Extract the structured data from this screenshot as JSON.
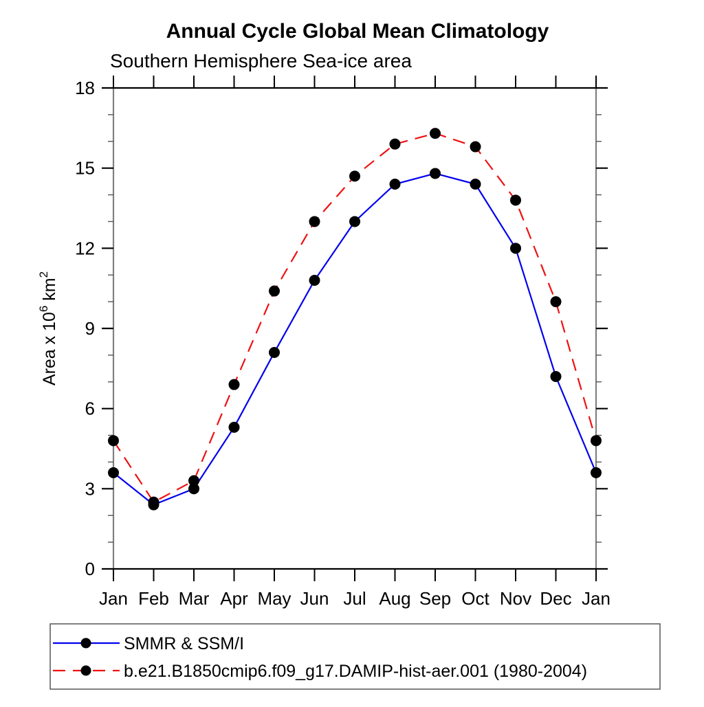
{
  "title": "Annual Cycle Global Mean Climatology",
  "subtitle": "Southern Hemisphere Sea-ice area",
  "chart_data": {
    "type": "line",
    "categories": [
      "Jan",
      "Feb",
      "Mar",
      "Apr",
      "May",
      "Jun",
      "Jul",
      "Aug",
      "Sep",
      "Oct",
      "Nov",
      "Dec",
      "Jan"
    ],
    "ylabel": "Area x 10^6 km^2",
    "ylabel_parts": {
      "base": "Area x 10",
      "sup1": "6",
      "mid": " km",
      "sup2": "2"
    },
    "ylim": [
      0,
      18
    ],
    "yticks": [
      0,
      3,
      6,
      9,
      12,
      15,
      18
    ],
    "minor_tick_step": 1,
    "grid": false,
    "legend_position": "bottom-left-box",
    "series": [
      {
        "name": "SMMR & SSM/I",
        "color": "#0000ee",
        "line_style": "solid",
        "marker": "filled-circle",
        "marker_color": "#000000",
        "values": [
          3.6,
          2.4,
          3.0,
          5.3,
          8.1,
          10.8,
          13.0,
          14.4,
          14.8,
          14.4,
          12.0,
          7.2,
          3.6
        ]
      },
      {
        "name": "b.e21.B1850cmip6.f09_g17.DAMIP-hist-aer.001 (1980-2004)",
        "color": "#ee1111",
        "line_style": "dashed",
        "marker": "filled-circle",
        "marker_color": "#000000",
        "values": [
          4.8,
          2.5,
          3.3,
          6.9,
          10.4,
          13.0,
          14.7,
          15.9,
          16.3,
          15.8,
          13.8,
          10.0,
          4.8
        ]
      }
    ]
  }
}
